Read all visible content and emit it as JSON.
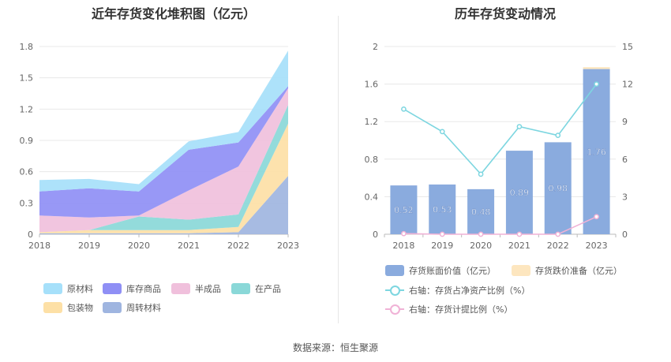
{
  "left_chart": {
    "title": "近年存货变化堆积图（亿元）",
    "legend": [
      {
        "name": "原材料",
        "color": "#a6e0fa"
      },
      {
        "name": "库存商品",
        "color": "#8f8ff5"
      },
      {
        "name": "半成品",
        "color": "#f0c0dc"
      },
      {
        "name": "在产品",
        "color": "#8ad8d8"
      },
      {
        "name": "包装物",
        "color": "#fde0a6"
      },
      {
        "name": "周转材料",
        "color": "#9fb5e0"
      }
    ]
  },
  "right_chart": {
    "title": "历年存货变动情况",
    "legend": [
      {
        "name": "存货账面价值（亿元）",
        "color": "#8aabde"
      },
      {
        "name": "存货跌价准备（亿元）",
        "color": "#fde6bf"
      },
      {
        "name": "右轴：存货占净资产比例（%）",
        "color": "#7dd6e0"
      },
      {
        "name": "右轴：存货计提比例（%）",
        "color": "#f0b2d6"
      }
    ]
  },
  "source": "数据来源：恒生聚源",
  "chart_data": [
    {
      "type": "area",
      "stacked": true,
      "title": "近年存货变化堆积图（亿元）",
      "x": [
        "2018",
        "2019",
        "2020",
        "2021",
        "2022",
        "2023"
      ],
      "ylim": [
        0,
        1.8
      ],
      "yticks": [
        "0",
        "0.3",
        "0.6",
        "0.9",
        "1.2",
        "1.5",
        "1.8"
      ],
      "grid": true,
      "legend_position": "bottom",
      "series_stack_order": [
        "周转材料",
        "包装物",
        "在产品",
        "半成品",
        "库存商品",
        "原材料"
      ],
      "series": [
        {
          "name": "周转材料",
          "values": [
            0.01,
            0.01,
            0.01,
            0.01,
            0.02,
            0.56
          ],
          "color": "#9fb5e0"
        },
        {
          "name": "包装物",
          "values": [
            0.01,
            0.03,
            0.03,
            0.03,
            0.05,
            0.5
          ],
          "color": "#fde0a6"
        },
        {
          "name": "在产品",
          "values": [
            0.0,
            0.0,
            0.13,
            0.1,
            0.12,
            0.18
          ],
          "color": "#8ad8d8"
        },
        {
          "name": "半成品",
          "values": [
            0.16,
            0.12,
            0.01,
            0.28,
            0.46,
            0.16
          ],
          "color": "#f0c0dc"
        },
        {
          "name": "库存商品",
          "values": [
            0.23,
            0.28,
            0.23,
            0.39,
            0.23,
            0.02
          ],
          "color": "#8f8ff5"
        },
        {
          "name": "原材料",
          "values": [
            0.11,
            0.09,
            0.07,
            0.08,
            0.1,
            0.34
          ],
          "color": "#a6e0fa"
        }
      ]
    },
    {
      "type": "bar",
      "stacked": true,
      "title": "历年存货变动情况",
      "categories": [
        "2018",
        "2019",
        "2020",
        "2021",
        "2022",
        "2023"
      ],
      "ylim": [
        0,
        2
      ],
      "yticks": [
        "0",
        "0.4",
        "0.8",
        "1.2",
        "1.6",
        "2"
      ],
      "y2lim": [
        0,
        15
      ],
      "y2ticks": [
        "0",
        "3",
        "6",
        "9",
        "12",
        "15"
      ],
      "grid": true,
      "legend_position": "bottom",
      "series": [
        {
          "name": "存货账面价值（亿元）",
          "values": [
            0.52,
            0.53,
            0.48,
            0.89,
            0.98,
            1.76
          ],
          "labels": [
            "0.52",
            "0.53",
            "0.48",
            "0.89",
            "0.98",
            "1.76"
          ],
          "color": "#8aabde"
        },
        {
          "name": "存货跌价准备（亿元）",
          "values": [
            0,
            0,
            0,
            0,
            0,
            0.02
          ],
          "color": "#fde6bf"
        }
      ],
      "line_series": [
        {
          "name": "右轴：存货占净资产比例（%）",
          "axis": "right",
          "values": [
            10.0,
            8.2,
            4.8,
            8.6,
            7.9,
            12.0
          ],
          "color": "#7dd6e0"
        },
        {
          "name": "右轴：存货计提比例（%）",
          "axis": "right",
          "values": [
            0.05,
            0.0,
            0.0,
            0.0,
            0.0,
            1.4
          ],
          "color": "#f0b2d6"
        }
      ]
    }
  ]
}
